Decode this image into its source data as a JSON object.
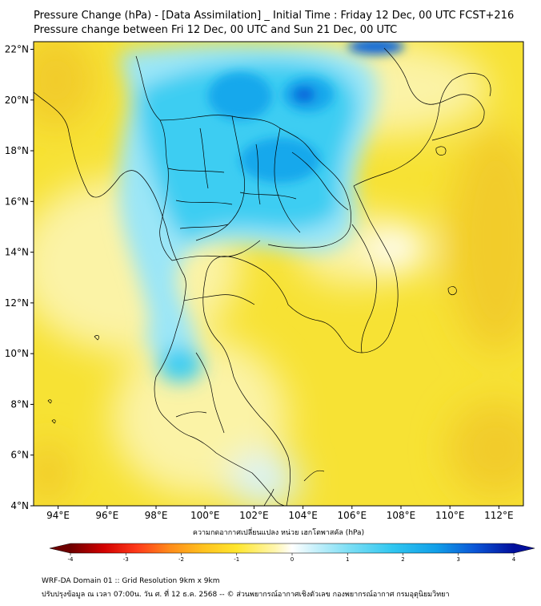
{
  "header": {
    "title_line1": "Pressure Change (hPa) - [Data Assimilation] _ Initial Time : Friday 12 Dec, 00 UTC FCST+216",
    "title_line2": "Pressure change between Fri 12 Dec, 00 UTC and Sun 21 Dec, 00 UTC"
  },
  "map": {
    "lat_labels": [
      {
        "label": "22°N",
        "value": 22
      },
      {
        "label": "20°N",
        "value": 20
      },
      {
        "label": "18°N",
        "value": 18
      },
      {
        "label": "16°N",
        "value": 16
      },
      {
        "label": "14°N",
        "value": 14
      },
      {
        "label": "12°N",
        "value": 12
      },
      {
        "label": "10°N",
        "value": 10
      },
      {
        "label": "8°N",
        "value": 8
      },
      {
        "label": "6°N",
        "value": 6
      },
      {
        "label": "4°N",
        "value": 4
      }
    ],
    "lon_labels": [
      {
        "label": "94°E",
        "value": 94
      },
      {
        "label": "96°E",
        "value": 96
      },
      {
        "label": "98°E",
        "value": 98
      },
      {
        "label": "100°E",
        "value": 100
      },
      {
        "label": "102°E",
        "value": 102
      },
      {
        "label": "104°E",
        "value": 104
      },
      {
        "label": "106°E",
        "value": 106
      },
      {
        "label": "108°E",
        "value": 108
      },
      {
        "label": "110°E",
        "value": 110
      },
      {
        "label": "112°E",
        "value": 112
      }
    ],
    "lon_range": [
      93,
      113
    ],
    "lat_range": [
      4,
      22.3
    ],
    "colors": {
      "deep_yellow": "#f2cc2a",
      "yellow": "#f7e234",
      "pale_yellow": "#fbf3a6",
      "white": "#ffffff",
      "cyan_light": "#9be6f7",
      "cyan": "#3ccdf2",
      "blue": "#16a8ec",
      "deep_blue": "#0a67db",
      "land_line": "#000000"
    }
  },
  "colorbar": {
    "label": "ความกดอากาศเปลี่ยนแปลง หน่วย เฮกโตพาสคัล (hPa)",
    "vmin": -4,
    "vmax": 4,
    "ticks": [
      {
        "label": "-4",
        "value": -4
      },
      {
        "label": "-3",
        "value": -3
      },
      {
        "label": "-2",
        "value": -2
      },
      {
        "label": "-1",
        "value": -1
      },
      {
        "label": "0",
        "value": 0
      },
      {
        "label": "1",
        "value": 1
      },
      {
        "label": "2",
        "value": 2
      },
      {
        "label": "3",
        "value": 3
      },
      {
        "label": "4",
        "value": 4
      }
    ],
    "stops": [
      {
        "value": -4,
        "color": "#6e0000"
      },
      {
        "value": -3.4,
        "color": "#d20000"
      },
      {
        "value": -2.8,
        "color": "#ff3a1a"
      },
      {
        "value": -2.2,
        "color": "#ff8c1a"
      },
      {
        "value": -1.6,
        "color": "#ffc21f"
      },
      {
        "value": -1.0,
        "color": "#ffe62e"
      },
      {
        "value": -0.3,
        "color": "#fff6b0"
      },
      {
        "value": 0,
        "color": "#ffffff"
      },
      {
        "value": 0.4,
        "color": "#c9f1fb"
      },
      {
        "value": 1.0,
        "color": "#7fdff5"
      },
      {
        "value": 1.8,
        "color": "#31c7f0"
      },
      {
        "value": 2.6,
        "color": "#119fe8"
      },
      {
        "value": 3.3,
        "color": "#0b55d6"
      },
      {
        "value": 4,
        "color": "#02109c"
      }
    ]
  },
  "footer": {
    "line1": "WRF-DA Domain 01 :: Grid Resolution 9km x 9km",
    "line2": "ปรับปรุงข้อมูล ณ เวลา 07:00น. วัน ศ. ที่ 12 ธ.ค. 2568 -- © ส่วนพยากรณ์อากาศเชิงตัวเลข กองพยากรณ์อากาศ กรมอุตุนิยมวิทยา"
  }
}
